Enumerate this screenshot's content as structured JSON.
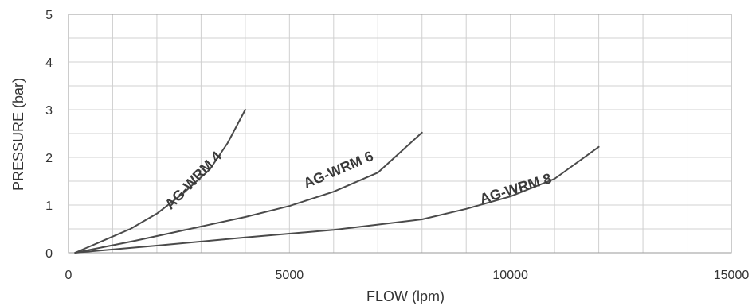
{
  "chart_data": {
    "type": "line",
    "title": "",
    "xlabel": "FLOW (lpm)",
    "ylabel": "PRESSURE  (bar)",
    "xlim": [
      0,
      15000
    ],
    "ylim": [
      0,
      5
    ],
    "x_ticks": [
      0,
      5000,
      10000,
      15000
    ],
    "y_ticks": [
      0,
      1,
      2,
      3,
      4,
      5
    ],
    "x_ticks_labeled": [
      "0",
      "5000",
      "10000",
      "15000"
    ],
    "y_ticks_labeled": [
      "0",
      "1",
      "2",
      "3",
      "4",
      "5"
    ],
    "x_minor_step": 1000,
    "y_minor_step": 0.5,
    "grid": true,
    "line_color": "#4a4a4a",
    "grid_color": "#d0d0d0",
    "series": [
      {
        "name": "AG-WRM 4",
        "x": [
          150,
          1400,
          2000,
          2600,
          3200,
          3600,
          4000
        ],
        "y": [
          0.0,
          0.5,
          0.82,
          1.25,
          1.75,
          2.3,
          3.0
        ]
      },
      {
        "name": "AG-WRM 6",
        "x": [
          150,
          1500,
          3000,
          4000,
          5000,
          6000,
          7000,
          8000
        ],
        "y": [
          0.0,
          0.25,
          0.55,
          0.75,
          0.98,
          1.28,
          1.68,
          2.52
        ]
      },
      {
        "name": "AG-WRM 8",
        "x": [
          150,
          2000,
          4000,
          6000,
          8000,
          9000,
          10000,
          11000,
          12000
        ],
        "y": [
          0.0,
          0.15,
          0.32,
          0.48,
          0.7,
          0.92,
          1.18,
          1.55,
          2.22
        ]
      }
    ]
  }
}
